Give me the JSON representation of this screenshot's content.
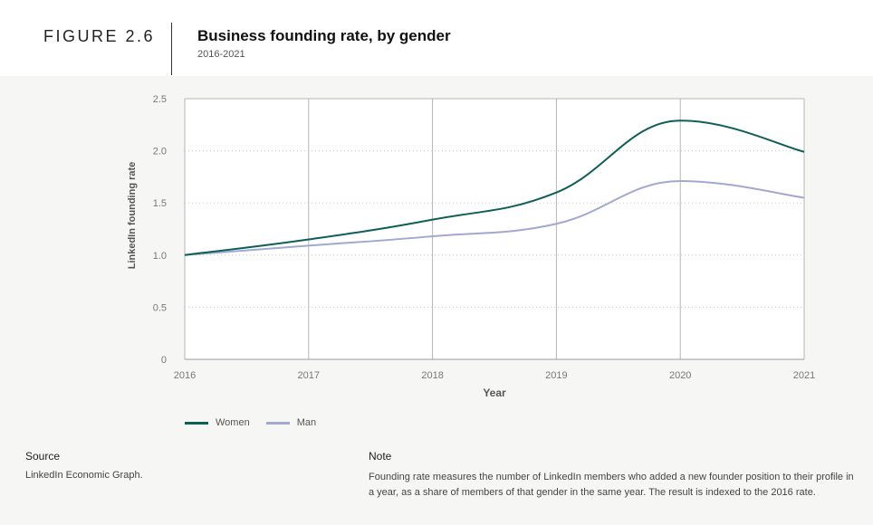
{
  "figure": {
    "label": "FIGURE 2.6",
    "title": "Business founding rate, by gender",
    "subtitle": "2016-2021"
  },
  "chart_data": {
    "type": "line",
    "title": "Business founding rate, by gender",
    "subtitle": "2016-2021",
    "xlabel": "Year",
    "ylabel": "LinkedIn founding rate",
    "x": [
      2016,
      2017,
      2018,
      2019,
      2020,
      2021
    ],
    "xticks": [
      "2016",
      "2017",
      "2018",
      "2019",
      "2020",
      "2021"
    ],
    "yticks": [
      "0",
      "0.5",
      "1.0",
      "1.5",
      "2.0",
      "2.5"
    ],
    "ylim": [
      0,
      2.5
    ],
    "grid": "vertical solid, horizontal dotted",
    "legend_position": "bottom-left",
    "series": [
      {
        "name": "Women",
        "color": "#0e5f57",
        "values": [
          1.0,
          1.15,
          1.34,
          1.6,
          2.29,
          1.99
        ]
      },
      {
        "name": "Man",
        "color": "#9fa9d3",
        "values": [
          1.0,
          1.09,
          1.18,
          1.3,
          1.71,
          1.55
        ]
      }
    ]
  },
  "source": {
    "heading": "Source",
    "text": "LinkedIn Economic Graph."
  },
  "note": {
    "heading": "Note",
    "text": "Founding rate measures the number of LinkedIn members who added a new founder position to their profile in a year, as a share of members of that gender in the same year. The result is indexed to the 2016 rate."
  }
}
